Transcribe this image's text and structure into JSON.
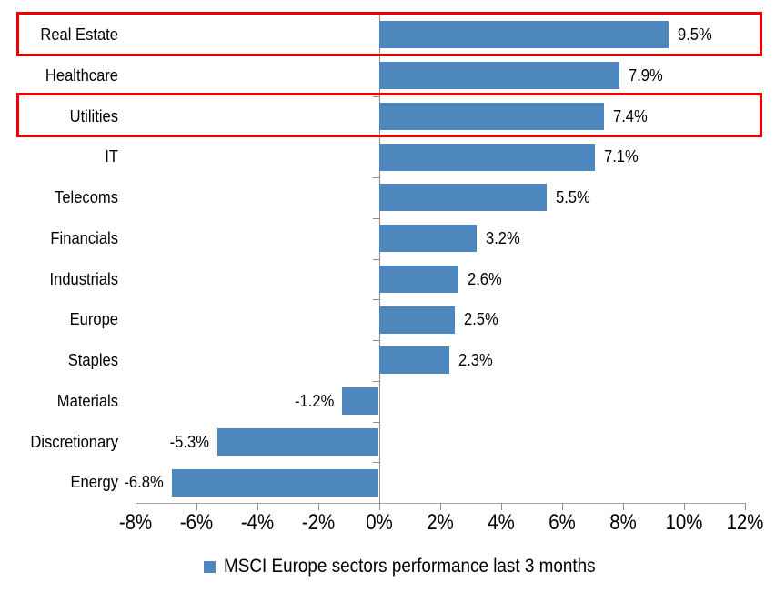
{
  "chart_data": {
    "type": "bar",
    "orientation": "horizontal",
    "title": "",
    "legend": "MSCI Europe sectors performance last 3 months",
    "legend_position": "bottom-center",
    "grid": false,
    "categories": [
      "Real Estate",
      "Healthcare",
      "Utilities",
      "IT",
      "Telecoms",
      "Financials",
      "Industrials",
      "Europe",
      "Staples",
      "Materials",
      "Discretionary",
      "Energy"
    ],
    "values": [
      9.5,
      7.9,
      7.4,
      7.1,
      5.5,
      3.2,
      2.6,
      2.5,
      2.3,
      -1.2,
      -5.3,
      -6.8
    ],
    "data_labels": [
      "9.5%",
      "7.9%",
      "7.4%",
      "7.1%",
      "5.5%",
      "3.2%",
      "2.6%",
      "2.5%",
      "2.3%",
      "-1.2%",
      "-5.3%",
      "-6.8%"
    ],
    "x_axis": {
      "min": -8,
      "max": 12,
      "step": 2,
      "tick_labels": [
        "-8%",
        "-6%",
        "-4%",
        "-2%",
        "0%",
        "2%",
        "4%",
        "6%",
        "8%",
        "10%",
        "12%"
      ]
    },
    "highlighted_categories": [
      "Real Estate",
      "Utilities"
    ],
    "colors": {
      "bar": "#4e87be",
      "highlight_border": "#f00000",
      "axis_line": "#a6a6a6",
      "tick": "#8e8e8e",
      "text": "#000000"
    }
  }
}
